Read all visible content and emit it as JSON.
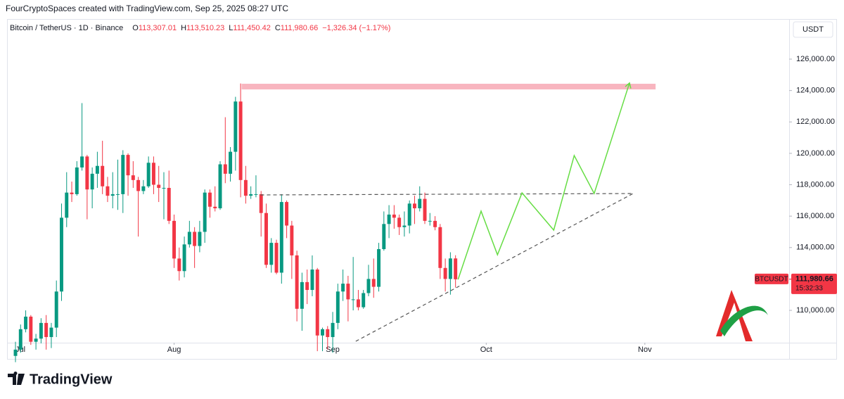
{
  "header": {
    "credit": "FourCryptoSpaces created with TradingView.com, Sep 25, 2025 08:27 UTC",
    "brand": "TradingView"
  },
  "chart_data": {
    "type": "candlestick",
    "symbol_title": "Bitcoin / TetherUS · 1D · Binance",
    "ohlc_legend": [
      {
        "key": "O",
        "value": "113,307.01"
      },
      {
        "key": "H",
        "value": "113,510.23"
      },
      {
        "key": "L",
        "value": "111,450.42"
      },
      {
        "key": "C",
        "value": "111,980.66"
      }
    ],
    "change": "−1,326.34 (−1.17%)",
    "currency": "USDT",
    "last_price": {
      "symbol": "BTCUSDT",
      "label": "111,980.66",
      "countdown": "15:32:33"
    },
    "up_color": "#089981",
    "down_color": "#f23645",
    "xlim": [
      -1.65,
      151.2
    ],
    "xticks": [
      {
        "value": 0,
        "label": "Jul"
      },
      {
        "value": 31,
        "label": "Aug"
      },
      {
        "value": 62,
        "label": "Sep"
      },
      {
        "value": 92,
        "label": "Oct"
      },
      {
        "value": 123,
        "label": "Nov"
      }
    ],
    "ylim": [
      107940,
      128510
    ],
    "yticks": [
      {
        "value": 110000,
        "label": "110,000.00"
      },
      {
        "value": 112000,
        "label": "112,000.00"
      },
      {
        "value": 114000,
        "label": "114,000.00"
      },
      {
        "value": 116000,
        "label": "116,000.00"
      },
      {
        "value": 118000,
        "label": "118,000.00"
      },
      {
        "value": 120000,
        "label": "120,000.00"
      },
      {
        "value": 122000,
        "label": "122,000.00"
      },
      {
        "value": 124000,
        "label": "124,000.00"
      },
      {
        "value": 126000,
        "label": "126,000.00"
      }
    ],
    "open": [
      107100,
      107500,
      108800,
      109600,
      108000,
      108200,
      109200,
      108300,
      108900,
      111200,
      115900,
      117500,
      117400,
      119100,
      119800,
      117700,
      118700,
      119200,
      117900,
      117300,
      117400,
      117400,
      119900,
      118600,
      118300,
      117600,
      117900,
      119400,
      118000,
      117800,
      117800,
      115700,
      113300,
      112500,
      114200,
      115000,
      114100,
      115000,
      117500,
      116600,
      116500,
      119300,
      118700,
      120100,
      123300,
      118300,
      117300,
      117400,
      117400,
      116200,
      112900,
      114300,
      112400,
      116900,
      115400,
      113500,
      110100,
      111800,
      111300,
      112600,
      108400,
      108800,
      108300,
      109200,
      111200,
      111700,
      110700,
      110700,
      110200,
      111100,
      112000,
      111500,
      113900,
      115500,
      116100,
      115900,
      115300,
      115400,
      116800,
      116500,
      117100,
      115700,
      115700,
      115300,
      112700,
      112000,
      113307.01
    ],
    "high": [
      108000,
      109100,
      110000,
      109700,
      108500,
      109500,
      109700,
      109200,
      111900,
      116800,
      118800,
      118200,
      119500,
      123200,
      119900,
      119100,
      120100,
      120800,
      118500,
      118800,
      119600,
      120200,
      120000,
      119500,
      118500,
      118300,
      119800,
      119800,
      119200,
      118800,
      118900,
      116100,
      114000,
      114700,
      115700,
      115300,
      115700,
      117700,
      117700,
      117900,
      119500,
      122300,
      120400,
      123600,
      124450,
      119200,
      117900,
      118600,
      117600,
      116800,
      114600,
      114500,
      117400,
      117000,
      115700,
      113800,
      112400,
      112600,
      113500,
      112700,
      108900,
      109000,
      109900,
      111700,
      112600,
      112200,
      113400,
      111300,
      111300,
      112900,
      113300,
      114300,
      116300,
      116700,
      116700,
      116100,
      116300,
      117000,
      117300,
      117900,
      117500,
      116200,
      116000,
      115500,
      113300,
      113700,
      113510.23
    ],
    "low": [
      106700,
      107300,
      108600,
      107800,
      107500,
      107900,
      107500,
      107600,
      108300,
      110600,
      115300,
      116900,
      117300,
      118900,
      115800,
      116500,
      117800,
      117400,
      116900,
      116500,
      116400,
      116200,
      117300,
      117800,
      114700,
      117400,
      117800,
      117400,
      116900,
      115800,
      115500,
      112700,
      111900,
      112100,
      114000,
      112700,
      113700,
      114300,
      115900,
      116300,
      116400,
      118100,
      118200,
      118900,
      117200,
      116800,
      117100,
      117200,
      114700,
      112700,
      112400,
      112300,
      111700,
      114600,
      112000,
      109300,
      108700,
      110400,
      110900,
      107400,
      107400,
      107500,
      107300,
      108800,
      110600,
      109300,
      110000,
      110000,
      110100,
      110900,
      110800,
      111200,
      113800,
      114600,
      115200,
      114800,
      114700,
      114900,
      115500,
      116300,
      115500,
      115400,
      115100,
      112000,
      111200,
      111000,
      111450.42
    ],
    "close": [
      107500,
      108800,
      109600,
      108000,
      108200,
      109200,
      108300,
      108900,
      111200,
      115900,
      117500,
      117400,
      119100,
      119800,
      117700,
      118700,
      119200,
      117900,
      117300,
      117400,
      117400,
      119900,
      118600,
      118300,
      117600,
      117900,
      119400,
      118000,
      117800,
      117800,
      115700,
      113300,
      112500,
      114200,
      115000,
      114100,
      115000,
      117500,
      116600,
      116500,
      119300,
      118700,
      120100,
      123300,
      118300,
      117300,
      117400,
      117400,
      116200,
      112900,
      114300,
      112400,
      116900,
      115400,
      113500,
      110100,
      111800,
      111300,
      112600,
      108400,
      108800,
      108300,
      109200,
      111200,
      111700,
      110700,
      110700,
      110200,
      111100,
      112000,
      111500,
      113900,
      115500,
      116100,
      115900,
      115300,
      115400,
      116800,
      116500,
      117100,
      115700,
      115700,
      115300,
      112700,
      112000,
      113307.01,
      111980.66
    ],
    "drawings": {
      "target_zone": {
        "color": "#f7a8b4",
        "x": [
          44.2,
          125.1
        ],
        "y": [
          124070,
          124430
        ]
      },
      "resistance": {
        "color": "#555555",
        "x": [
          47.9,
          120.7
        ],
        "y": [
          117350,
          117440
        ]
      },
      "support": {
        "color": "#555555",
        "x": [
          66.5,
          120.7
        ],
        "y": [
          108030,
          117440
        ]
      },
      "projection": {
        "color": "#66dd44",
        "x": [
          86.5,
          91.0,
          94.2,
          99.0,
          105.2,
          109.2,
          113.1,
          120.0
        ],
        "y": [
          111970,
          116320,
          113540,
          117480,
          115110,
          119860,
          117440,
          124480
        ]
      }
    }
  }
}
